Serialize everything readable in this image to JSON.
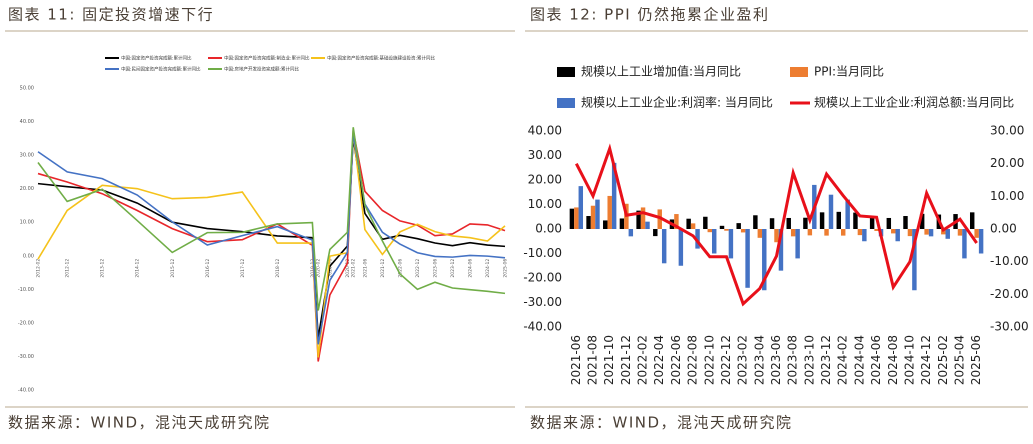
{
  "header": {
    "left_title": "图表 11:  固定投资增速下行",
    "right_title": "图表 12: PPI 仍然拖累企业盈利"
  },
  "footer": {
    "left_source": "数据来源：WIND，混沌天成研究院",
    "right_source": "数据来源：WIND，混沌天成研究院"
  },
  "chart_data": [
    {
      "type": "line",
      "x": [
        "2012-02",
        "2012-12",
        "2013-12",
        "2014-12",
        "2015-12",
        "2016-12",
        "2017-12",
        "2018-12",
        "2019-12",
        "2020-02",
        "2020-06",
        "2020-12",
        "2021-02",
        "2021-06",
        "2021-12",
        "2022-06",
        "2022-12",
        "2023-06",
        "2023-12",
        "2024-06",
        "2024-12",
        "2025-06"
      ],
      "ylim": [
        -40,
        50
      ],
      "yticks": [
        {
          "value": 50,
          "label": "50.00"
        },
        {
          "value": 40,
          "label": "40.00"
        },
        {
          "value": 30,
          "label": "30.00"
        },
        {
          "value": 20,
          "label": "20.00"
        },
        {
          "value": 10,
          "label": "10.00"
        },
        {
          "value": 0,
          "label": "0.00"
        },
        {
          "value": -10,
          "label": "-10.00"
        },
        {
          "value": -20,
          "label": "-20.00"
        },
        {
          "value": -30,
          "label": "-30.00"
        },
        {
          "value": -40,
          "label": "-40.00"
        }
      ],
      "series": [
        {
          "name": "中国:固定资产投资完成额:累计同比",
          "color": "#000000",
          "values": [
            21.5,
            20.6,
            19.6,
            15.7,
            10.0,
            8.1,
            7.2,
            5.9,
            5.4,
            -24.5,
            -3.1,
            2.9,
            35.0,
            12.6,
            4.9,
            6.1,
            5.1,
            3.8,
            3.0,
            3.9,
            3.2,
            2.8
          ]
        },
        {
          "name": "中国:固定资产投资完成额:制造业:累计同比",
          "color": "#e8262a",
          "values": [
            24.5,
            22.0,
            18.5,
            13.5,
            8.1,
            4.2,
            4.8,
            9.5,
            3.1,
            -31.5,
            -11.7,
            -2.2,
            37.3,
            19.2,
            13.5,
            10.4,
            9.1,
            6.0,
            6.5,
            9.5,
            9.2,
            7.5
          ]
        },
        {
          "name": "中国:固定资产投资完成额:基础设施建设投资:累计同比",
          "color": "#f5c21b",
          "values": [
            -1.0,
            13.5,
            21.0,
            20.0,
            17.0,
            17.4,
            19.0,
            3.8,
            3.8,
            -30.3,
            -0.1,
            0.9,
            36.6,
            7.8,
            0.4,
            7.1,
            9.4,
            7.2,
            5.9,
            5.4,
            4.4,
            8.9
          ]
        },
        {
          "name": "中国:民间固定资产投资完成额:累计同比",
          "color": "#4472c4",
          "values": [
            31.0,
            25.0,
            23.0,
            18.1,
            10.1,
            3.2,
            6.0,
            8.7,
            4.7,
            -26.4,
            -7.3,
            1.0,
            36.4,
            15.4,
            7.0,
            3.5,
            0.9,
            -0.2,
            -0.4,
            0.1,
            -0.1,
            -0.6
          ]
        },
        {
          "name": "中国:房地产开发投资完成额:累计同比",
          "color": "#70ad47",
          "values": [
            27.8,
            16.2,
            19.8,
            10.5,
            1.0,
            6.9,
            7.0,
            9.5,
            9.9,
            -16.3,
            1.9,
            7.0,
            38.3,
            15.0,
            4.4,
            -5.4,
            -10.0,
            -7.9,
            -9.6,
            -10.1,
            -10.6,
            -11.2
          ]
        }
      ]
    },
    {
      "type": "combo",
      "categories": [
        "2021-06",
        "2021-08",
        "2021-10",
        "2021-12",
        "2022-02",
        "2022-04",
        "2022-06",
        "2022-08",
        "2022-10",
        "2022-12",
        "2023-02",
        "2023-04",
        "2023-06",
        "2023-08",
        "2023-10",
        "2023-12",
        "2024-02",
        "2024-04",
        "2024-06",
        "2024-08",
        "2024-10",
        "2024-12",
        "2025-02",
        "2025-04",
        "2025-06"
      ],
      "ylim": [
        -40,
        40
      ],
      "yticks": [
        {
          "value": 40,
          "label": "40.00"
        },
        {
          "value": 30,
          "label": "30.00"
        },
        {
          "value": 20,
          "label": "20.00"
        },
        {
          "value": 10,
          "label": "10.00"
        },
        {
          "value": 0,
          "label": "0.00"
        },
        {
          "value": -10,
          "label": "-10.00"
        },
        {
          "value": -20,
          "label": "-20.00"
        },
        {
          "value": -30,
          "label": "-30.00"
        },
        {
          "value": -40,
          "label": "-40.00"
        }
      ],
      "y2lim": [
        -30,
        30
      ],
      "y2ticks": [
        {
          "value": 30,
          "label": "30.00"
        },
        {
          "value": 20,
          "label": "20.00"
        },
        {
          "value": 10,
          "label": "10.00"
        },
        {
          "value": 0,
          "label": "0.00"
        },
        {
          "value": -10,
          "label": "-10.00"
        },
        {
          "value": -20,
          "label": "-20.00"
        },
        {
          "value": -30,
          "label": "-30.00"
        }
      ],
      "series": [
        {
          "name": "规模以上工业增加值:当月同比",
          "color": "#000000",
          "kind": "bar",
          "values": [
            8.3,
            5.3,
            3.5,
            4.3,
            7.5,
            -2.9,
            3.9,
            4.2,
            5.0,
            1.3,
            2.4,
            5.6,
            4.4,
            4.5,
            4.6,
            6.8,
            7.0,
            6.7,
            5.3,
            4.5,
            5.3,
            6.2,
            5.9,
            6.1,
            6.8
          ]
        },
        {
          "name": "PPI:当月同比",
          "color": "#ed7d31",
          "kind": "bar",
          "values": [
            8.8,
            9.5,
            13.5,
            10.3,
            8.8,
            8.0,
            6.1,
            2.3,
            -1.3,
            -0.7,
            -1.4,
            -3.6,
            -5.4,
            -3.0,
            -2.6,
            -2.7,
            -2.7,
            -2.5,
            -0.8,
            -1.8,
            -2.9,
            -2.3,
            -2.2,
            -2.7,
            -3.6
          ]
        },
        {
          "name": "规模以上工业企业:利润率: 当月同比",
          "color": "#4472c4",
          "kind": "bar",
          "values": [
            17.5,
            12,
            27,
            -3,
            3,
            -14,
            -15,
            -8,
            -10,
            -12,
            -24,
            -25,
            -17,
            -12,
            18,
            14,
            12,
            -5,
            -3,
            -5,
            -25,
            -3,
            -4,
            -12,
            -10
          ]
        },
        {
          "name": "规模以上工业企业:利润总额:当月同比",
          "color": "#e8101a",
          "kind": "line",
          "axis": "y2",
          "values": [
            20.0,
            10.1,
            24.6,
            4.2,
            5.0,
            3.5,
            0.8,
            -2.1,
            -8.5,
            -8.5,
            -22.9,
            -18.2,
            -8.3,
            17.2,
            2.7,
            16.8,
            10.2,
            4.0,
            3.6,
            -17.8,
            -10.0,
            11.0,
            -0.3,
            3.0,
            -4.3
          ]
        }
      ]
    }
  ]
}
